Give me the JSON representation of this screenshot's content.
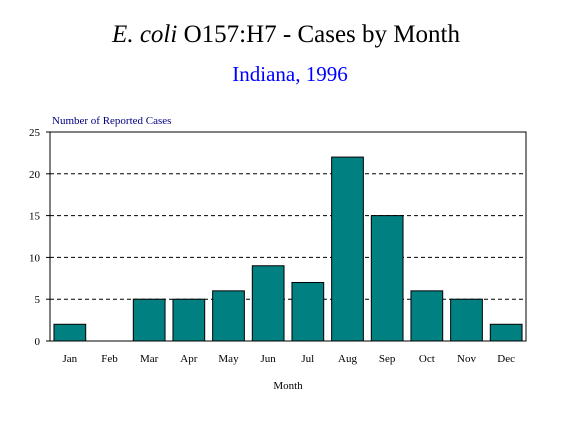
{
  "chart_data": {
    "type": "bar",
    "title": {
      "italic": "E. coli",
      "rest": " O157:H7 - Cases by Month"
    },
    "subtitle": "Indiana, 1996",
    "ylabel": "Number of Reported Cases",
    "xlabel": "Month",
    "categories": [
      "Jan",
      "Feb",
      "Mar",
      "Apr",
      "May",
      "Jun",
      "Jul",
      "Aug",
      "Sep",
      "Oct",
      "Nov",
      "Dec"
    ],
    "values": [
      2,
      0,
      5,
      5,
      6,
      9,
      7,
      22,
      15,
      6,
      5,
      2
    ],
    "yticks": [
      "0",
      "5",
      "10",
      "15",
      "20",
      "25"
    ],
    "ylim": [
      0,
      25
    ],
    "grid": true,
    "legend": "none"
  },
  "colors": {
    "bar": "#008080",
    "title": "#000000",
    "subtitle": "#0000ff",
    "ylabel": "#000080",
    "axis": "#000000"
  }
}
